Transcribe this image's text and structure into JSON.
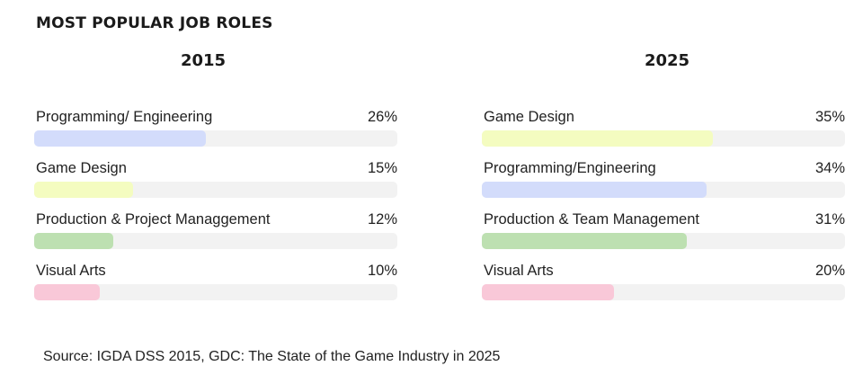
{
  "title": "MOST POPULAR JOB ROLES",
  "source": "Source: IGDA DSS 2015, GDC: The State of the Game Industry in 2025",
  "colors": {
    "track": "#f2f2f2",
    "programming": "#d3dcfb",
    "game_design": "#f4fcc0",
    "production": "#bde0b1",
    "visual_arts": "#f9c8d8"
  },
  "chart_data": [
    {
      "type": "bar",
      "orientation": "horizontal",
      "title": "2015",
      "categories": [
        "Programming/ Engineering",
        "Game Design",
        "Production & Project Managgement",
        "Visual Arts"
      ],
      "values": [
        26,
        15,
        12,
        10
      ],
      "value_labels": [
        "26%",
        "15%",
        "12%",
        "10%"
      ],
      "bar_colors": [
        "#d3dcfb",
        "#f4fcc0",
        "#bde0b1",
        "#f9c8d8"
      ],
      "xlim": [
        0,
        55
      ],
      "unit": "%"
    },
    {
      "type": "bar",
      "orientation": "horizontal",
      "title": "2025",
      "categories": [
        "Game Design",
        "Programming/Engineering",
        "Production & Team Management",
        "Visual Arts"
      ],
      "values": [
        35,
        34,
        31,
        20
      ],
      "value_labels": [
        "35%",
        "34%",
        "31%",
        "20%"
      ],
      "bar_colors": [
        "#f4fcc0",
        "#d3dcfb",
        "#bde0b1",
        "#f9c8d8"
      ],
      "xlim": [
        0,
        55
      ],
      "unit": "%"
    }
  ]
}
